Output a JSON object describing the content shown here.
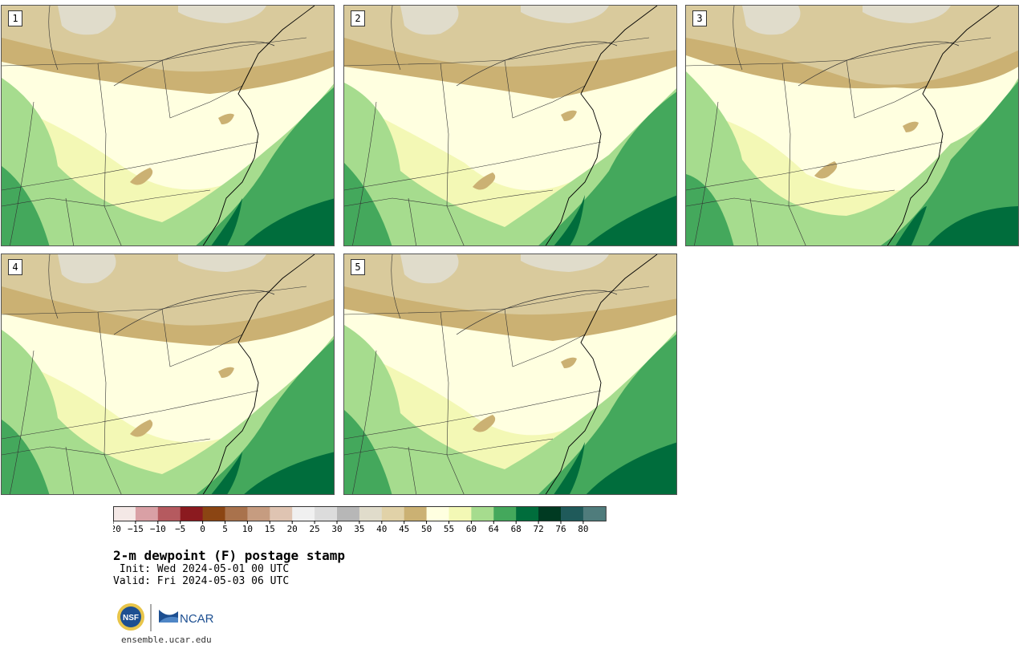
{
  "panels": [
    {
      "label": "1"
    },
    {
      "label": "2"
    },
    {
      "label": "3"
    },
    {
      "label": "4"
    },
    {
      "label": "5"
    }
  ],
  "colorbar": {
    "ticks": [
      "−20",
      "−15",
      "−10",
      "−5",
      "0",
      "5",
      "10",
      "15",
      "20",
      "25",
      "30",
      "35",
      "40",
      "45",
      "50",
      "55",
      "60",
      "64",
      "68",
      "72",
      "76",
      "80"
    ],
    "colors": [
      "#f4e8e6",
      "#d9a0a5",
      "#b55a5f",
      "#8b1a1f",
      "#8b4513",
      "#a9724c",
      "#c69c80",
      "#dfc4b2",
      "#f0f0f0",
      "#dcdcdc",
      "#b7b7b7",
      "#e0dccb",
      "#e1d2a8",
      "#cbb173",
      "#ffffe0",
      "#f3f8b5",
      "#a6dc8e",
      "#44a85c",
      "#006d3c",
      "#003a22",
      "#1f5a5a",
      "#4f7c7c"
    ]
  },
  "title": {
    "main": "2-m dewpoint (F) postage stamp",
    "init": " Init: Wed 2024-05-01 00 UTC",
    "valid": "Valid: Fri 2024-05-03 06 UTC"
  },
  "logos": {
    "nsf": "NSF",
    "ncar": "NCAR"
  },
  "footer": {
    "url": "ensemble.ucar.edu"
  }
}
